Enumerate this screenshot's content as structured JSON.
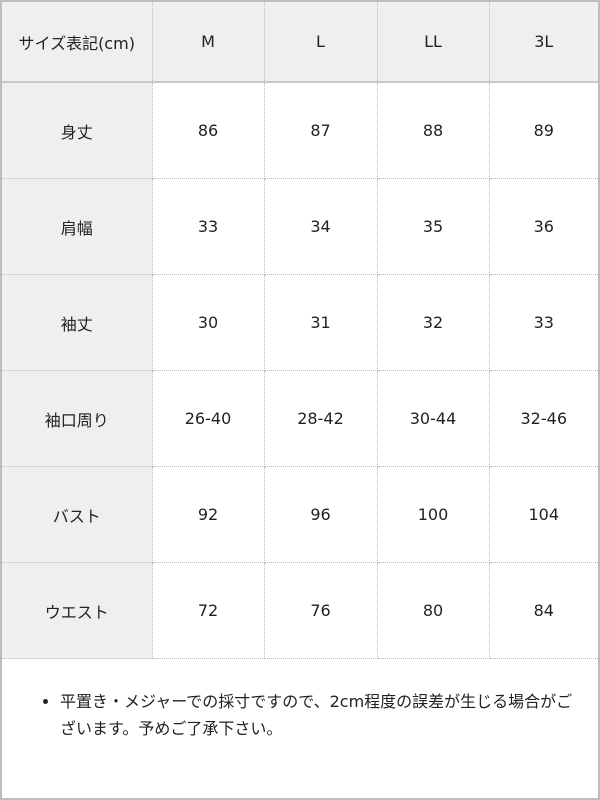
{
  "table": {
    "header": [
      "サイズ表記(cm)",
      "M",
      "L",
      "LL",
      "3L"
    ],
    "rows": [
      {
        "label": "身丈",
        "values": [
          "86",
          "87",
          "88",
          "89"
        ]
      },
      {
        "label": "肩幅",
        "values": [
          "33",
          "34",
          "35",
          "36"
        ]
      },
      {
        "label": "袖丈",
        "values": [
          "30",
          "31",
          "32",
          "33"
        ]
      },
      {
        "label": "袖口周り",
        "values": [
          "26-40",
          "28-42",
          "30-44",
          "32-46"
        ]
      },
      {
        "label": "バスト",
        "values": [
          "92",
          "96",
          "100",
          "104"
        ]
      },
      {
        "label": "ウエスト",
        "values": [
          "72",
          "76",
          "80",
          "84"
        ]
      }
    ]
  },
  "note": "平置き・メジャーでの採寸ですので、2cm程度の誤差が生じる場合がございます。予めご了承下さい。"
}
